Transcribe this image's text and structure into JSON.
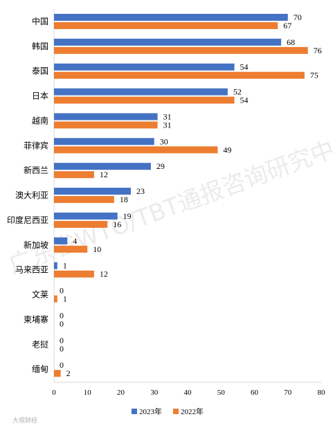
{
  "chart_data": {
    "type": "bar",
    "orientation": "horizontal",
    "categories": [
      "中国",
      "韩国",
      "泰国",
      "日本",
      "越南",
      "菲律宾",
      "新西兰",
      "澳大利亚",
      "印度尼西亚",
      "新加坡",
      "马来西亚",
      "文莱",
      "柬埔寨",
      "老挝",
      "缅甸"
    ],
    "series": [
      {
        "name": "2023年",
        "color": "#4472C4",
        "values": [
          70,
          68,
          54,
          52,
          31,
          30,
          29,
          23,
          19,
          4,
          1,
          0,
          0,
          0,
          0
        ]
      },
      {
        "name": "2022年",
        "color": "#ED7D31",
        "values": [
          67,
          76,
          75,
          54,
          31,
          49,
          12,
          18,
          16,
          10,
          12,
          1,
          0,
          0,
          2
        ]
      }
    ],
    "xlim": [
      0,
      80
    ],
    "x_ticks": [
      0,
      10,
      20,
      30,
      40,
      50,
      60,
      70,
      80
    ],
    "legend_position": "bottom",
    "grid": false
  },
  "watermark": "广东省WTO/TBT通报咨询研究中心",
  "credit": "大视财经"
}
